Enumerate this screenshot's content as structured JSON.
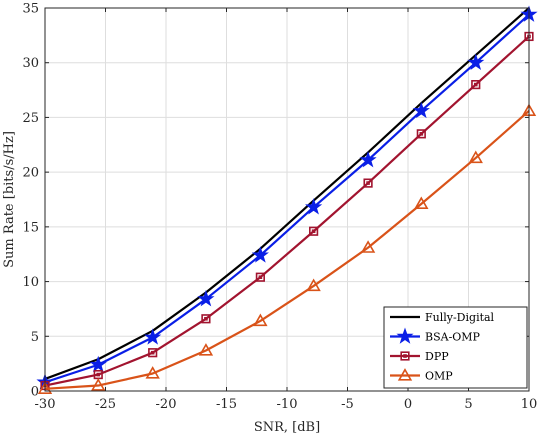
{
  "chart_data": {
    "type": "line",
    "xlabel": "SNR, [dB]",
    "ylabel": "Sum Rate [bits/s/Hz]",
    "xlim": [
      -30,
      10
    ],
    "ylim": [
      0,
      35
    ],
    "xticks": [
      -30,
      -25,
      -20,
      -15,
      -10,
      -5,
      0,
      5,
      10
    ],
    "yticks": [
      0,
      5,
      10,
      15,
      20,
      25,
      30,
      35
    ],
    "grid": true,
    "legend_position": "bottom-right",
    "x": [
      -30,
      -25.6,
      -21.1,
      -16.7,
      -12.2,
      -7.8,
      -3.3,
      1.1,
      5.6,
      10
    ],
    "series": [
      {
        "name": "Fully-Digital",
        "color": "#000000",
        "marker": "none",
        "values": [
          1.1,
          2.9,
          5.5,
          9.0,
          13.0,
          17.4,
          21.8,
          26.3,
          30.7,
          35.0
        ]
      },
      {
        "name": "BSA-OMP",
        "color": "#0a1fe6",
        "marker": "star",
        "values": [
          0.8,
          2.4,
          4.9,
          8.4,
          12.4,
          16.8,
          21.1,
          25.6,
          30.0,
          34.4
        ]
      },
      {
        "name": "DPP",
        "color": "#a2142f",
        "marker": "square",
        "values": [
          0.5,
          1.5,
          3.5,
          6.6,
          10.4,
          14.6,
          19.0,
          23.5,
          28.0,
          32.4
        ]
      },
      {
        "name": "OMP",
        "color": "#d95319",
        "marker": "triangle",
        "values": [
          0.2,
          0.5,
          1.6,
          3.7,
          6.4,
          9.6,
          13.1,
          17.1,
          21.3,
          25.6
        ]
      }
    ]
  }
}
